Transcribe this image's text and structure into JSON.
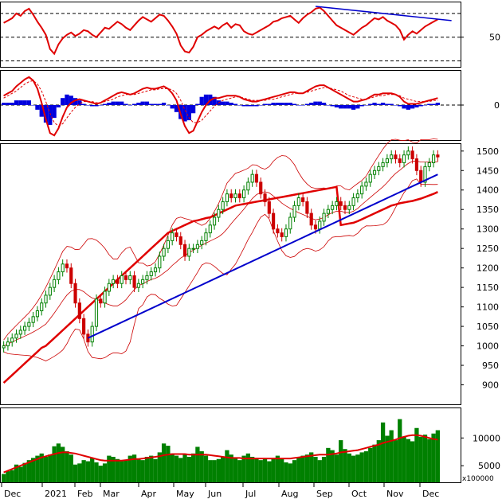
{
  "chart_data": [
    {
      "panel": "rsi",
      "type": "line",
      "y_ticks": [
        50
      ],
      "reference_levels": [
        30,
        50,
        70
      ],
      "colors": {
        "line": "#e00000",
        "trendline": "#0000cc",
        "ref": "#000000"
      },
      "values": [
        62,
        64,
        66,
        70,
        68,
        72,
        74,
        69,
        63,
        58,
        52,
        40,
        36,
        44,
        49,
        52,
        54,
        51,
        53,
        56,
        55,
        52,
        50,
        54,
        58,
        57,
        60,
        63,
        61,
        58,
        56,
        60,
        64,
        67,
        65,
        63,
        66,
        69,
        68,
        64,
        59,
        53,
        43,
        38,
        37,
        42,
        50,
        52,
        55,
        57,
        59,
        57,
        60,
        62,
        58,
        61,
        60,
        55,
        53,
        52,
        54,
        56,
        58,
        60,
        63,
        64,
        66,
        67,
        68,
        65,
        62,
        66,
        69,
        71,
        74,
        75,
        72,
        68,
        64,
        60,
        58,
        56,
        54,
        52,
        55,
        58,
        60,
        63,
        66,
        65,
        67,
        64,
        62,
        60,
        56,
        48,
        52,
        55,
        53,
        56,
        59,
        61,
        63,
        65
      ]
    },
    {
      "panel": "macd",
      "type": "area",
      "y_ticks": [
        0
      ],
      "colors": {
        "macd": "#e00000",
        "signal": "#e00000",
        "histogram": "#0000dd"
      },
      "macd": [
        8,
        10,
        12,
        16,
        19,
        22,
        24,
        21,
        14,
        2,
        -12,
        -24,
        -26,
        -20,
        -10,
        -2,
        2,
        4,
        5,
        4,
        3,
        2,
        1,
        2,
        4,
        6,
        8,
        10,
        11,
        10,
        9,
        10,
        12,
        14,
        15,
        14,
        14,
        15,
        16,
        14,
        10,
        4,
        -8,
        -18,
        -24,
        -22,
        -14,
        -6,
        0,
        4,
        6,
        6,
        7,
        8,
        8,
        8,
        7,
        5,
        4,
        3,
        3,
        4,
        5,
        6,
        7,
        8,
        9,
        10,
        11,
        11,
        10,
        10,
        12,
        14,
        16,
        17,
        17,
        15,
        13,
        11,
        9,
        7,
        5,
        3,
        3,
        4,
        5,
        7,
        9,
        9,
        10,
        10,
        10,
        9,
        7,
        3,
        1,
        1,
        1,
        2,
        3,
        4,
        5,
        6
      ],
      "signal": [
        6,
        8,
        10,
        12,
        15,
        18,
        20,
        21,
        18,
        12,
        3,
        -7,
        -15,
        -18,
        -16,
        -11,
        -6,
        -2,
        1,
        3,
        3,
        3,
        2,
        2,
        3,
        4,
        5,
        7,
        8,
        9,
        9,
        9,
        10,
        11,
        12,
        13,
        13,
        14,
        14,
        14,
        13,
        10,
        4,
        -4,
        -11,
        -15,
        -15,
        -13,
        -9,
        -5,
        -1,
        2,
        4,
        5,
        6,
        7,
        7,
        6,
        5,
        4,
        4,
        4,
        4,
        5,
        5,
        6,
        7,
        8,
        9,
        10,
        10,
        10,
        11,
        12,
        13,
        14,
        15,
        15,
        14,
        13,
        12,
        10,
        8,
        7,
        6,
        5,
        5,
        6,
        7,
        8,
        8,
        9,
        9,
        9,
        8,
        6,
        5,
        4,
        3,
        3,
        3,
        3,
        4,
        4
      ],
      "histogram": [
        2,
        2,
        2,
        4,
        4,
        4,
        4,
        0,
        -4,
        -10,
        -15,
        -17,
        -11,
        -2,
        6,
        9,
        8,
        6,
        4,
        1,
        0,
        -1,
        -1,
        0,
        1,
        2,
        3,
        3,
        3,
        1,
        0,
        1,
        2,
        3,
        3,
        1,
        1,
        1,
        2,
        0,
        -3,
        -6,
        -12,
        -14,
        -13,
        -7,
        1,
        7,
        9,
        9,
        7,
        4,
        3,
        3,
        2,
        1,
        0,
        -1,
        -1,
        -1,
        -1,
        0,
        1,
        1,
        2,
        2,
        2,
        2,
        2,
        1,
        0,
        0,
        1,
        2,
        3,
        3,
        2,
        0,
        -1,
        -2,
        -3,
        -3,
        -3,
        -4,
        -3,
        -1,
        0,
        1,
        2,
        1,
        2,
        1,
        1,
        0,
        -1,
        -3,
        -4,
        -3,
        -2,
        -1,
        0,
        1,
        1,
        2
      ]
    },
    {
      "panel": "price",
      "type": "candlestick",
      "y_ticks": [
        900,
        950,
        1000,
        1050,
        1100,
        1150,
        1200,
        1250,
        1300,
        1350,
        1400,
        1450,
        1500
      ],
      "ylim": [
        850,
        1520
      ],
      "colors": {
        "up": "#008000",
        "down": "#cc0000",
        "ma_long": "#e00000",
        "bollinger": "#cc0000",
        "trendline": "#0000cc"
      },
      "close": [
        1000,
        1010,
        1020,
        1030,
        1040,
        1050,
        1060,
        1075,
        1090,
        1110,
        1130,
        1150,
        1170,
        1190,
        1210,
        1200,
        1160,
        1110,
        1070,
        1030,
        1010,
        1050,
        1120,
        1110,
        1140,
        1160,
        1170,
        1160,
        1180,
        1170,
        1180,
        1150,
        1160,
        1170,
        1180,
        1190,
        1200,
        1230,
        1250,
        1270,
        1290,
        1280,
        1260,
        1230,
        1250,
        1250,
        1260,
        1270,
        1290,
        1310,
        1330,
        1350,
        1370,
        1390,
        1380,
        1390,
        1380,
        1400,
        1420,
        1440,
        1420,
        1390,
        1370,
        1340,
        1300,
        1290,
        1280,
        1300,
        1330,
        1360,
        1380,
        1370,
        1340,
        1310,
        1300,
        1320,
        1340,
        1350,
        1360,
        1370,
        1360,
        1350,
        1360,
        1380,
        1390,
        1410,
        1420,
        1440,
        1450,
        1460,
        1470,
        1480,
        1490,
        1480,
        1470,
        1490,
        1500,
        1480,
        1450,
        1420,
        1460,
        1470,
        1490,
        1485
      ],
      "ma_long": [
        905,
        915,
        925,
        935,
        945,
        955,
        965,
        975,
        985,
        995,
        1000,
        1010,
        1020,
        1030,
        1040,
        1050,
        1060,
        1070,
        1080,
        1090,
        1100,
        1110,
        1120,
        1130,
        1140,
        1150,
        1160,
        1170,
        1180,
        1190,
        1200,
        1210,
        1220,
        1230,
        1240,
        1250,
        1260,
        1270,
        1280,
        1290,
        1295,
        1300,
        1305,
        1310,
        1315,
        1320,
        1322,
        1325,
        1328,
        1330,
        1335,
        1340,
        1345,
        1350,
        1355,
        1360,
        1362,
        1364,
        1366,
        1368,
        1370,
        1372,
        1374,
        1376,
        1378,
        1380,
        1382,
        1384,
        1386,
        1388,
        1390,
        1392,
        1394,
        1396,
        1398,
        1400,
        1402,
        1404,
        1406,
        1408,
        1310,
        1312,
        1314,
        1316,
        1320,
        1325,
        1330,
        1335,
        1340,
        1345,
        1350,
        1355,
        1360,
        1363,
        1366,
        1368,
        1370,
        1372,
        1375,
        1378,
        1382,
        1386,
        1390,
        1395
      ],
      "trendline": [
        [
          20,
          1020
        ],
        [
          103,
          1440
        ]
      ]
    },
    {
      "panel": "volume",
      "type": "bar",
      "y_ticks": [
        5000,
        10000
      ],
      "scale_label": "x100000",
      "colors": {
        "bars": "#008000",
        "ma": "#e00000"
      },
      "values": [
        3500,
        4000,
        4200,
        5200,
        4800,
        5500,
        6000,
        6400,
        6800,
        7200,
        6600,
        7000,
        8500,
        9000,
        8400,
        7600,
        7000,
        5200,
        5400,
        6000,
        5800,
        6400,
        5600,
        5000,
        5400,
        6800,
        6600,
        6200,
        5800,
        6000,
        6800,
        7000,
        6200,
        6000,
        6600,
        6800,
        6200,
        7400,
        9000,
        8600,
        7200,
        6800,
        6400,
        7000,
        6600,
        7200,
        8400,
        7600,
        6800,
        6000,
        6000,
        6200,
        6600,
        7800,
        7000,
        6400,
        6000,
        6800,
        7200,
        6600,
        6400,
        6000,
        6200,
        5800,
        6400,
        6800,
        6200,
        5600,
        5400,
        6000,
        6400,
        6800,
        7000,
        7400,
        6600,
        6000,
        6600,
        8200,
        7800,
        7000,
        9600,
        8000,
        7200,
        6800,
        7000,
        7400,
        7600,
        8200,
        8800,
        9600,
        12800,
        10400,
        11400,
        9600,
        13400,
        10200,
        9800,
        9400,
        11800,
        10200,
        10600,
        9800,
        10800,
        11400
      ],
      "ma": [
        3800,
        4100,
        4400,
        4700,
        5000,
        5300,
        5600,
        5900,
        6200,
        6500,
        6700,
        6900,
        7100,
        7300,
        7400,
        7400,
        7300,
        7200,
        7000,
        6800,
        6600,
        6400,
        6200,
        6000,
        5900,
        5900,
        5900,
        5900,
        5900,
        6000,
        6100,
        6200,
        6200,
        6300,
        6400,
        6500,
        6600,
        6700,
        6900,
        7000,
        7100,
        7100,
        7100,
        7100,
        7000,
        7000,
        7000,
        7000,
        7000,
        6900,
        6800,
        6700,
        6600,
        6500,
        6400,
        6400,
        6400,
        6300,
        6300,
        6300,
        6300,
        6300,
        6300,
        6300,
        6300,
        6300,
        6300,
        6300,
        6300,
        6400,
        6500,
        6600,
        6700,
        6800,
        6900,
        7000,
        7000,
        7000,
        7100,
        7200,
        7400,
        7500,
        7600,
        7700,
        7800,
        8000,
        8200,
        8400,
        8600,
        8800,
        9100,
        9300,
        9500,
        9700,
        10000,
        10200,
        10400,
        10500,
        10500,
        10400,
        10200,
        10000,
        9800,
        9700
      ]
    }
  ],
  "x_axis": {
    "labels": [
      "Dec",
      "2021",
      "Feb",
      "Mar",
      "Apr",
      "May",
      "Jun",
      "Jul",
      "Aug",
      "Sep",
      "Oct",
      "Nov",
      "Dec"
    ]
  }
}
